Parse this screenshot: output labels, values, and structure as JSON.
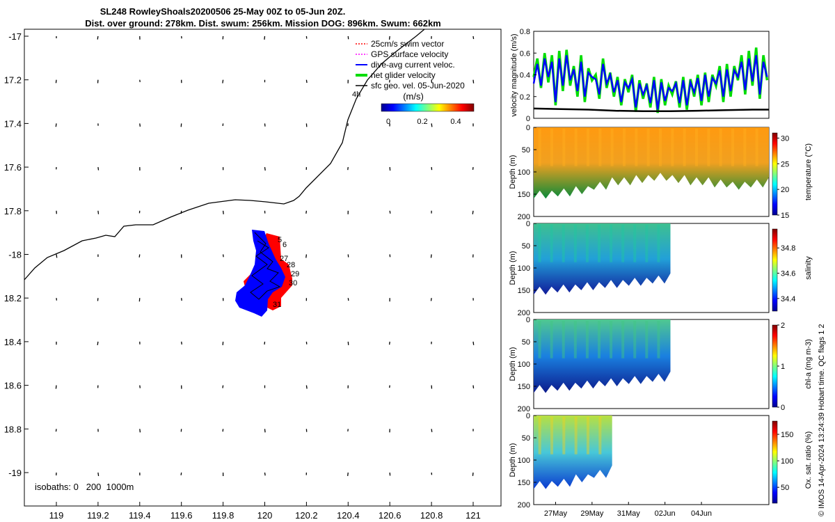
{
  "title": {
    "line1": "SL248 RowleyShoals20200506 25-May 00Z to 05-Jun 20Z.",
    "line2": "Dist. over ground: 278km. Dist. swum: 256km. Mission DOG: 896km. Swum: 662km"
  },
  "map": {
    "lon_ticks": [
      "119",
      "119.2",
      "119.4",
      "119.6",
      "119.8",
      "120",
      "120.2",
      "120.4",
      "120.6",
      "120.8",
      "121"
    ],
    "lat_ticks": [
      "-17",
      "17.2",
      "17.4",
      "17.6",
      "17.8",
      "-18",
      "18.2",
      "18.4",
      "18.6",
      "18.8",
      "-19"
    ],
    "isobath_text": "isobaths: 0   200  1000m",
    "legend": [
      {
        "label": "25cm/s swim vector",
        "color": "#ff0000"
      },
      {
        "label": "GPS surface velocity",
        "color": "#ff00ff"
      },
      {
        "label": "dive-avg current veloc.",
        "color": "#0000ff"
      },
      {
        "label": "net glider velocity",
        "color": "#00dd00"
      },
      {
        "label": "sfc geo. vel. 05-Jun-2020",
        "color": "#000000"
      }
    ],
    "colorbar_title": "(m/s)",
    "colorbar_ticks": [
      "0",
      "0.2",
      "0.4"
    ],
    "coast_label": "4h",
    "day_labels": [
      "5",
      "6",
      "27",
      "28",
      "29",
      "30",
      "31"
    ],
    "colors": {
      "track_red": "#ff0000",
      "track_blue": "#0000ff"
    }
  },
  "time_ticks": [
    "27May",
    "29May",
    "31May",
    "02Jun",
    "04Jun"
  ],
  "credit": "© IMOS 14-Apr-2024 13:24:39 Hobart time. QC flags 1  2",
  "chart_data": [
    {
      "type": "line",
      "title": "",
      "ylabel": "velocity magnitude (m/s)",
      "ylim": [
        0,
        0.8
      ],
      "yticks": [
        "0",
        "0.2",
        "0.4",
        "0.6",
        "0.8"
      ],
      "xlim": [
        0,
        12.9
      ],
      "x_tick_labels": [
        "27May",
        "29May",
        "31May",
        "02Jun",
        "04Jun"
      ],
      "series": [
        {
          "color": "#00dd00",
          "x": [
            0.0,
            0.2,
            0.4,
            0.6,
            0.8,
            1.0,
            1.2,
            1.4,
            1.6,
            1.8,
            2.0,
            2.2,
            2.4,
            2.6,
            2.8,
            3.0,
            3.2,
            3.4,
            3.6,
            3.8,
            4.0,
            4.2,
            4.4,
            4.6,
            4.8,
            5.0,
            5.2,
            5.4,
            5.6,
            5.8,
            6.0,
            6.2,
            6.4,
            6.6,
            6.8,
            7.0,
            7.2,
            7.4,
            7.6,
            7.8,
            8.0,
            8.2,
            8.4,
            8.6,
            8.8,
            9.0,
            9.2,
            9.4,
            9.6,
            9.8,
            10.0,
            10.2,
            10.4,
            10.6,
            10.8,
            11.0,
            11.2,
            11.4,
            11.6,
            11.8,
            12.0,
            12.2,
            12.4,
            12.6,
            12.8
          ],
          "values": [
            0.38,
            0.55,
            0.28,
            0.6,
            0.33,
            0.58,
            0.12,
            0.62,
            0.25,
            0.63,
            0.3,
            0.48,
            0.2,
            0.58,
            0.15,
            0.46,
            0.35,
            0.4,
            0.18,
            0.55,
            0.28,
            0.42,
            0.2,
            0.38,
            0.12,
            0.36,
            0.24,
            0.4,
            0.06,
            0.35,
            0.18,
            0.32,
            0.1,
            0.38,
            0.05,
            0.36,
            0.12,
            0.3,
            0.22,
            0.34,
            0.1,
            0.38,
            0.08,
            0.36,
            0.2,
            0.4,
            0.12,
            0.42,
            0.15,
            0.4,
            0.3,
            0.48,
            0.15,
            0.5,
            0.2,
            0.48,
            0.35,
            0.58,
            0.22,
            0.62,
            0.3,
            0.65,
            0.18,
            0.58,
            0.35
          ]
        },
        {
          "color": "#0000ff",
          "x": [
            0.0,
            0.2,
            0.4,
            0.6,
            0.8,
            1.0,
            1.2,
            1.4,
            1.6,
            1.8,
            2.0,
            2.2,
            2.4,
            2.6,
            2.8,
            3.0,
            3.2,
            3.4,
            3.6,
            3.8,
            4.0,
            4.2,
            4.4,
            4.6,
            4.8,
            5.0,
            5.2,
            5.4,
            5.6,
            5.8,
            6.0,
            6.2,
            6.4,
            6.6,
            6.8,
            7.0,
            7.2,
            7.4,
            7.6,
            7.8,
            8.0,
            8.2,
            8.4,
            8.6,
            8.8,
            9.0,
            9.2,
            9.4,
            9.6,
            9.8,
            10.0,
            10.2,
            10.4,
            10.6,
            10.8,
            11.0,
            11.2,
            11.4,
            11.6,
            11.8,
            12.0,
            12.2,
            12.4,
            12.6,
            12.8
          ],
          "values": [
            0.32,
            0.5,
            0.3,
            0.55,
            0.38,
            0.52,
            0.15,
            0.55,
            0.3,
            0.58,
            0.35,
            0.45,
            0.25,
            0.52,
            0.2,
            0.42,
            0.38,
            0.36,
            0.22,
            0.5,
            0.32,
            0.4,
            0.24,
            0.35,
            0.15,
            0.33,
            0.28,
            0.36,
            0.1,
            0.32,
            0.22,
            0.3,
            0.14,
            0.35,
            0.08,
            0.33,
            0.16,
            0.28,
            0.25,
            0.32,
            0.14,
            0.35,
            0.12,
            0.33,
            0.24,
            0.37,
            0.16,
            0.4,
            0.2,
            0.37,
            0.32,
            0.44,
            0.2,
            0.45,
            0.25,
            0.44,
            0.38,
            0.52,
            0.26,
            0.55,
            0.34,
            0.58,
            0.22,
            0.52,
            0.38
          ]
        },
        {
          "color": "#000000",
          "x": [
            0,
            1.5,
            3,
            4.5,
            6,
            7.5,
            9,
            10.5,
            12,
            12.9
          ],
          "values": [
            0.09,
            0.085,
            0.08,
            0.07,
            0.065,
            0.065,
            0.07,
            0.075,
            0.08,
            0.08
          ]
        }
      ]
    },
    {
      "type": "heatmap",
      "title": "",
      "ylabel": "Depth (m)",
      "colorbar_label": "temperature (°C)",
      "ylim": [
        200,
        0
      ],
      "yticks": [
        "0",
        "50",
        "100",
        "150",
        "200"
      ],
      "colorbar_ticks": [
        "15",
        "20",
        "25",
        "30"
      ],
      "clim": [
        15,
        31
      ],
      "x_end_day": 12.9,
      "surface_value": 28.5,
      "deep_value": 17.5,
      "bottom_depth_samples": [
        160,
        155,
        150,
        140,
        130,
        125,
        120,
        125,
        130,
        135,
        140,
        135,
        130
      ],
      "x_tick_labels": [
        "27May",
        "29May",
        "31May",
        "02Jun",
        "04Jun"
      ]
    },
    {
      "type": "heatmap",
      "title": "",
      "ylabel": "Depth (m)",
      "colorbar_label": "salinity",
      "ylim": [
        200,
        0
      ],
      "yticks": [
        "0",
        "50",
        "100",
        "150",
        "200"
      ],
      "colorbar_ticks": [
        "34.4",
        "34.6",
        "34.8"
      ],
      "clim": [
        34.3,
        34.95
      ],
      "x_end_day": 7.5,
      "surface_value": 34.6,
      "deep_value": 34.38,
      "bottom_depth_samples": [
        160,
        155,
        150,
        145,
        140,
        135,
        130
      ],
      "x_tick_labels": [
        "27May",
        "29May",
        "31May",
        "02Jun",
        "04Jun"
      ]
    },
    {
      "type": "heatmap",
      "title": "",
      "ylabel": "Depth (m)",
      "colorbar_label": "chl-a (mg m-3)",
      "ylim": [
        200,
        0
      ],
      "yticks": [
        "0",
        "50",
        "100",
        "150",
        "200"
      ],
      "colorbar_ticks": [
        "0",
        "1",
        "2"
      ],
      "clim": [
        0,
        2
      ],
      "x_end_day": 7.5,
      "surface_value": 0.75,
      "deep_value": 0.12,
      "bottom_depth_samples": [
        165,
        160,
        155,
        150,
        145,
        140,
        135
      ],
      "x_tick_labels": [
        "27May",
        "29May",
        "31May",
        "02Jun",
        "04Jun"
      ]
    },
    {
      "type": "heatmap",
      "title": "",
      "ylabel": "Depth (m)",
      "colorbar_label": "Ox. sat. ratio (%)",
      "ylim": [
        200,
        0
      ],
      "yticks": [
        "0",
        "50",
        "100",
        "150",
        "200"
      ],
      "colorbar_ticks": [
        "50",
        "100",
        "150"
      ],
      "clim": [
        20,
        175
      ],
      "x_end_day": 4.3,
      "surface_value": 110,
      "deep_value": 72,
      "bottom_depth_samples": [
        165,
        160,
        150,
        140,
        130
      ],
      "x_tick_labels": [
        "27May",
        "29May",
        "31May",
        "02Jun",
        "04Jun"
      ]
    }
  ]
}
